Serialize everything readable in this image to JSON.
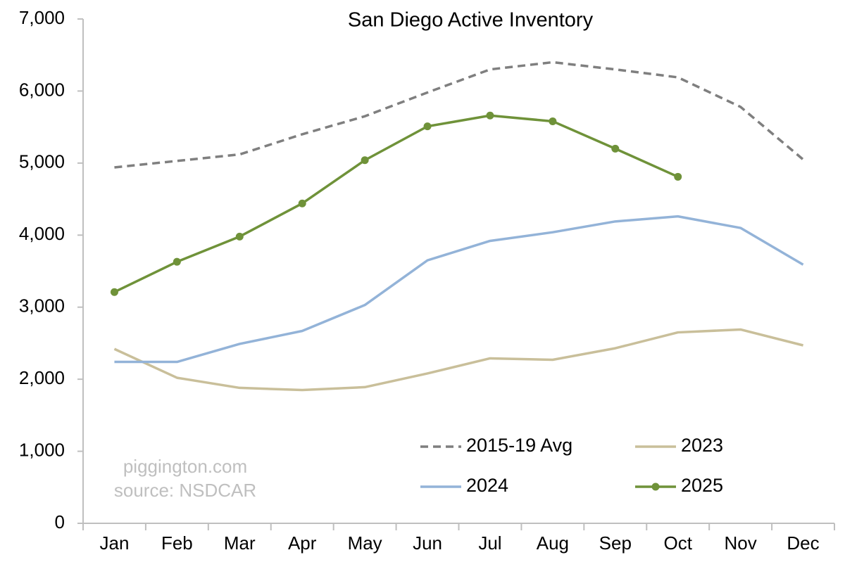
{
  "chart_data": {
    "type": "line",
    "title": "San Diego Active Inventory",
    "annotations": [
      "piggington.com",
      "source: NSDCAR"
    ],
    "categories": [
      "Jan",
      "Feb",
      "Mar",
      "Apr",
      "May",
      "Jun",
      "Jul",
      "Aug",
      "Sep",
      "Oct",
      "Nov",
      "Dec"
    ],
    "series": [
      {
        "name": "2015-19 Avg",
        "color": "#7f7f7f",
        "dashed": true,
        "markers": false,
        "values": [
          4940,
          5030,
          5120,
          5400,
          5650,
          5980,
          6300,
          6400,
          6300,
          6190,
          5780,
          5050
        ]
      },
      {
        "name": "2023",
        "color": "#c9bf9a",
        "dashed": false,
        "markers": false,
        "values": [
          2420,
          2020,
          1880,
          1850,
          1890,
          2080,
          2290,
          2270,
          2430,
          2650,
          2690,
          2470
        ]
      },
      {
        "name": "2024",
        "color": "#93b3d8",
        "dashed": false,
        "markers": false,
        "values": [
          2240,
          2240,
          2490,
          2670,
          3030,
          3650,
          3920,
          4040,
          4190,
          4260,
          4100,
          3590
        ]
      },
      {
        "name": "2025",
        "color": "#6f9239",
        "dashed": false,
        "markers": true,
        "values": [
          3210,
          3630,
          3980,
          4440,
          5040,
          5510,
          5660,
          5580,
          5200,
          4810,
          null,
          null
        ]
      }
    ],
    "ylim": [
      0,
      7000
    ],
    "yticks": [
      0,
      {
        "value": 1000,
        "label": "1,000"
      },
      {
        "value": 2000,
        "label": "2,000"
      },
      {
        "value": 3000,
        "label": "3,000"
      },
      {
        "value": 4000,
        "label": "4,000"
      },
      {
        "value": 5000,
        "label": "5,000"
      },
      {
        "value": 6000,
        "label": "6,000"
      },
      {
        "value": 7000,
        "label": "7,000"
      }
    ],
    "grid": false,
    "legend": "lower right"
  }
}
